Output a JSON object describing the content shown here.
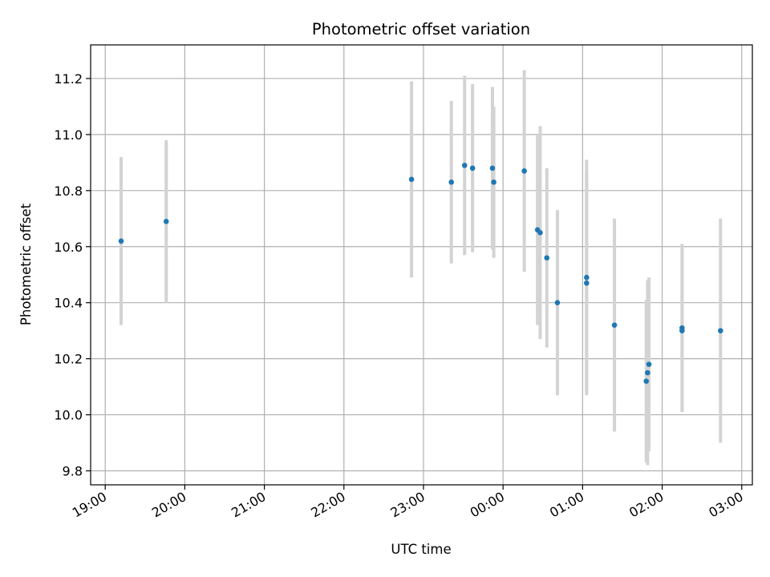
{
  "chart_data": {
    "type": "scatter",
    "title": "Photometric offset variation",
    "xlabel": "UTC time",
    "ylabel": "Photometric offset",
    "x_axis": "time",
    "x_ticks": [
      "19:00",
      "20:00",
      "21:00",
      "22:00",
      "23:00",
      "00:00",
      "01:00",
      "02:00",
      "03:00"
    ],
    "xlim": [
      "18:49",
      "03:08"
    ],
    "ylim": [
      9.75,
      11.32
    ],
    "y_ticks": [
      9.8,
      10.0,
      10.2,
      10.4,
      10.6,
      10.8,
      11.0,
      11.2
    ],
    "grid": true,
    "colors": {
      "points": "#1f77b4",
      "errorbars": "#d3d3d3",
      "grid": "#b0b0b0"
    },
    "series": [
      {
        "points": [
          {
            "x": "19:12",
            "y": 10.62,
            "err": 0.3
          },
          {
            "x": "19:46",
            "y": 10.69,
            "err": 0.29
          },
          {
            "x": "22:51",
            "y": 10.84,
            "err": 0.35
          },
          {
            "x": "23:21",
            "y": 10.83,
            "err": 0.29
          },
          {
            "x": "23:31",
            "y": 10.89,
            "err": 0.32
          },
          {
            "x": "23:37",
            "y": 10.88,
            "err": 0.3
          },
          {
            "x": "23:52",
            "y": 10.88,
            "err": 0.29
          },
          {
            "x": "23:53",
            "y": 10.83,
            "err": 0.27
          },
          {
            "x": "00:16",
            "y": 10.87,
            "err": 0.36
          },
          {
            "x": "00:26",
            "y": 10.66,
            "err": 0.34
          },
          {
            "x": "00:28",
            "y": 10.65,
            "err": 0.38
          },
          {
            "x": "00:33",
            "y": 10.56,
            "err": 0.32
          },
          {
            "x": "00:41",
            "y": 10.4,
            "err": 0.33
          },
          {
            "x": "01:03",
            "y": 10.49,
            "err": 0.42
          },
          {
            "x": "01:03",
            "y": 10.47,
            "err": 0.39
          },
          {
            "x": "01:24",
            "y": 10.32,
            "err": 0.38
          },
          {
            "x": "01:48",
            "y": 10.12,
            "err": 0.29
          },
          {
            "x": "01:49",
            "y": 10.15,
            "err": 0.33
          },
          {
            "x": "01:50",
            "y": 10.18,
            "err": 0.31
          },
          {
            "x": "02:15",
            "y": 10.31,
            "err": 0.3
          },
          {
            "x": "02:15",
            "y": 10.3,
            "err": 0.29
          },
          {
            "x": "02:44",
            "y": 10.3,
            "err": 0.4
          }
        ]
      }
    ]
  }
}
